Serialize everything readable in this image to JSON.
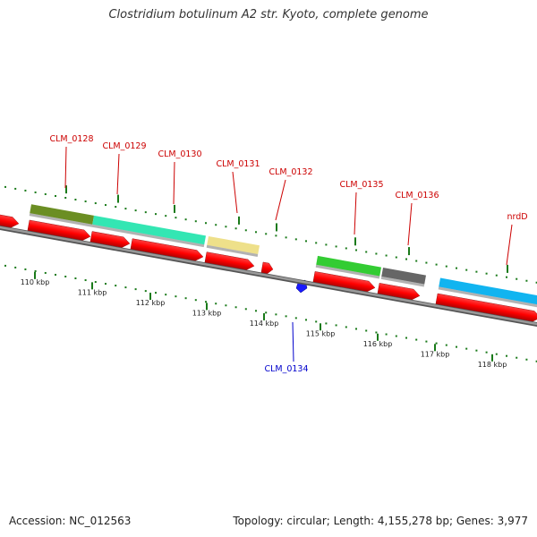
{
  "title": "Clostridium botulinum A2 str. Kyoto, complete genome",
  "footer": {
    "accession": "Accession: NC_012563",
    "summary": "Topology: circular; Length: 4,155,278 bp; Genes: 3,977"
  },
  "colors": {
    "gene_label": "#cc0000",
    "reverse_gene_label": "#0000cc",
    "cds": "#ff0000",
    "tick": "#1a7a1a",
    "backbone": "#808080"
  },
  "feature_labels": [
    {
      "name": "CLM_0128",
      "strand": "forward"
    },
    {
      "name": "CLM_0129",
      "strand": "forward"
    },
    {
      "name": "CLM_0130",
      "strand": "forward"
    },
    {
      "name": "CLM_0131",
      "strand": "forward"
    },
    {
      "name": "CLM_0132",
      "strand": "forward"
    },
    {
      "name": "CLM_0135",
      "strand": "forward"
    },
    {
      "name": "CLM_0136",
      "strand": "forward"
    },
    {
      "name": "nrdD",
      "strand": "forward"
    },
    {
      "name": "CLM_0134",
      "strand": "reverse"
    }
  ],
  "scale_labels": [
    "110 kbp",
    "111 kbp",
    "112 kbp",
    "113 kbp",
    "114 kbp",
    "115 kbp",
    "116 kbp",
    "117 kbp",
    "118 kbp"
  ],
  "gene_bar_colors": [
    "#6b8e23",
    "#33e6b3",
    "#eee08a",
    "#33cc33",
    "#666666",
    "#11b4f0"
  ]
}
